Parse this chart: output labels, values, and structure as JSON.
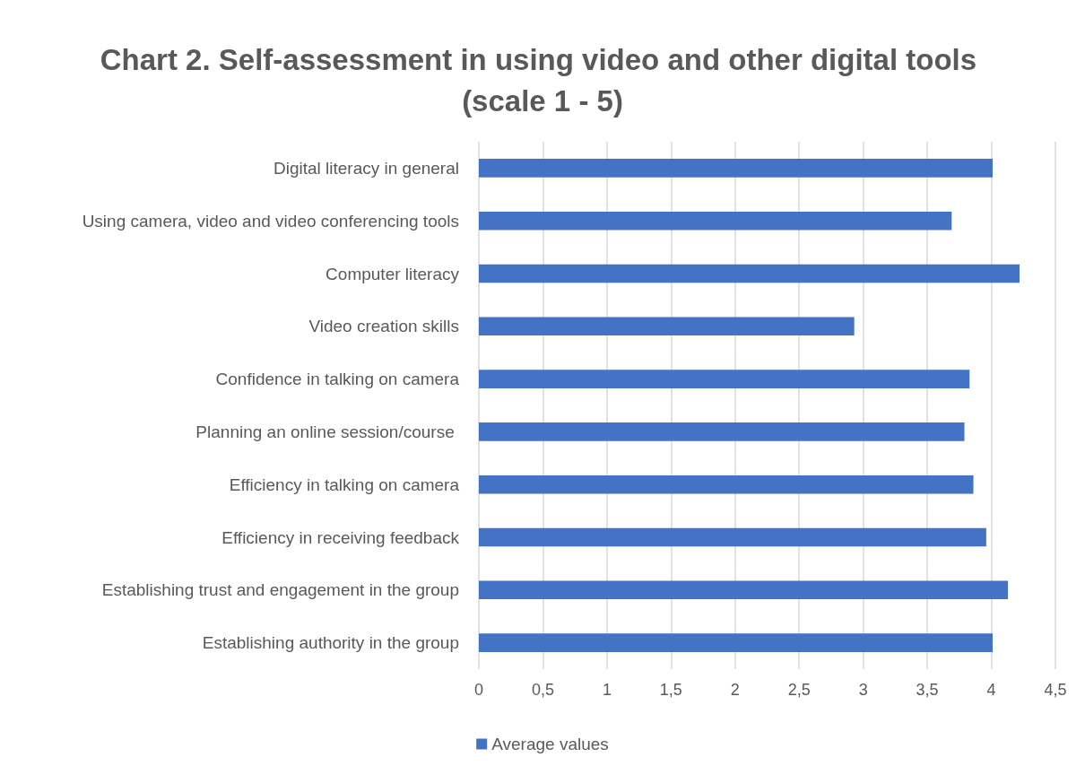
{
  "chart_data": {
    "type": "bar",
    "orientation": "horizontal",
    "title": "Chart 2. Self-assessment in using video and other digital tools (scale 1 - 5)",
    "categories": [
      "Digital literacy in general",
      "Using camera, video and video conferencing tools",
      "Computer literacy",
      "Video creation skills",
      "Confidence in talking on camera",
      "Planning an online session/course ",
      "Efficiency in talking on camera",
      "Efficiency in receiving feedback",
      "Establishing trust and engagement in the group",
      "Establishing authority in the group"
    ],
    "series": [
      {
        "name": "Average values",
        "color": "#4472c4",
        "values": [
          4.01,
          3.69,
          4.22,
          2.93,
          3.83,
          3.79,
          3.86,
          3.96,
          4.13,
          4.01
        ]
      }
    ],
    "xlim": [
      0,
      4.5
    ],
    "xticks": [
      0,
      {
        "value": 0.5,
        "label": "0,5"
      },
      1,
      {
        "value": 1.5,
        "label": "1,5"
      },
      2,
      {
        "value": 2.5,
        "label": "2,5"
      },
      3,
      {
        "value": 3.5,
        "label": "3,5"
      },
      4,
      {
        "value": 4.5,
        "label": "4,5"
      }
    ],
    "grid": "x",
    "legend": "bottom"
  }
}
